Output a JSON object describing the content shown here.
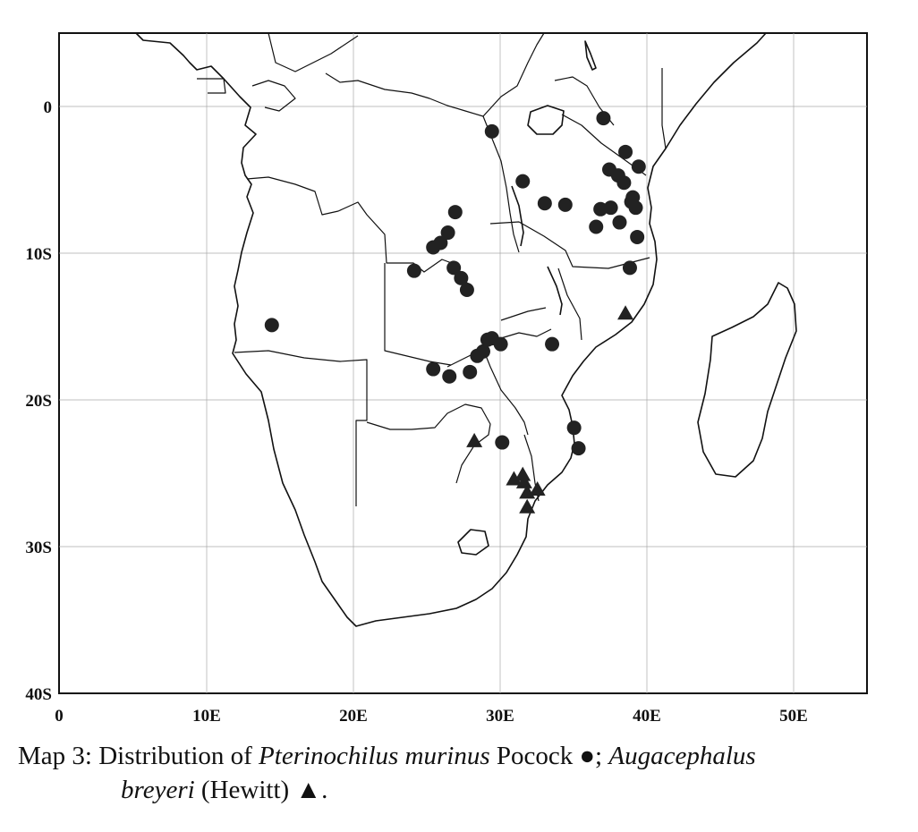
{
  "map": {
    "type": "scatter",
    "x_ticks": [
      "0",
      "10E",
      "20E",
      "30E",
      "40E",
      "50E"
    ],
    "y_ticks": [
      "0",
      "10S",
      "20S",
      "30S",
      "40S"
    ],
    "xlim": [
      0,
      55
    ],
    "ylim_lat": [
      5,
      -40
    ],
    "grid": true,
    "series": [
      {
        "name": "Pterinochilus murinus Pocock",
        "marker": "circle",
        "color": "#222222",
        "points": [
          [
            14.5,
            -14.9
          ],
          [
            24.2,
            -11.2
          ],
          [
            25.5,
            -9.6
          ],
          [
            26.0,
            -9.3
          ],
          [
            26.5,
            -8.6
          ],
          [
            27.0,
            -7.2
          ],
          [
            26.9,
            -11.0
          ],
          [
            27.4,
            -11.7
          ],
          [
            27.8,
            -12.5
          ],
          [
            29.5,
            -1.7
          ],
          [
            31.6,
            -5.1
          ],
          [
            33.1,
            -6.6
          ],
          [
            34.5,
            -6.7
          ],
          [
            36.6,
            -8.2
          ],
          [
            36.9,
            -7.0
          ],
          [
            37.6,
            -6.9
          ],
          [
            38.2,
            -7.9
          ],
          [
            37.1,
            -0.8
          ],
          [
            38.6,
            -3.1
          ],
          [
            37.5,
            -4.3
          ],
          [
            38.1,
            -4.7
          ],
          [
            38.5,
            -5.2
          ],
          [
            39.5,
            -4.1
          ],
          [
            39.0,
            -6.5
          ],
          [
            39.3,
            -6.9
          ],
          [
            39.1,
            -6.2
          ],
          [
            39.4,
            -8.9
          ],
          [
            38.9,
            -11.0
          ],
          [
            28.5,
            -17.0
          ],
          [
            28.9,
            -16.7
          ],
          [
            29.5,
            -15.8
          ],
          [
            30.1,
            -16.2
          ],
          [
            29.2,
            -15.9
          ],
          [
            25.5,
            -17.9
          ],
          [
            26.6,
            -18.4
          ],
          [
            28.0,
            -18.1
          ],
          [
            33.6,
            -16.2
          ],
          [
            30.2,
            -22.9
          ],
          [
            35.1,
            -21.9
          ],
          [
            35.4,
            -23.3
          ]
        ]
      },
      {
        "name": "Augacephalus breyeri (Hewitt)",
        "marker": "triangle",
        "color": "#222222",
        "points": [
          [
            38.6,
            -14.1
          ],
          [
            28.3,
            -22.8
          ],
          [
            31.0,
            -25.4
          ],
          [
            31.6,
            -25.1
          ],
          [
            31.9,
            -26.3
          ],
          [
            32.6,
            -26.1
          ],
          [
            31.7,
            -25.6
          ],
          [
            31.9,
            -27.3
          ]
        ]
      }
    ]
  },
  "caption": {
    "prefix": "Map 3:  Distribution of ",
    "species1": "Pterinochilus murinus",
    "author1": " Pocock ",
    "symbol1": "●",
    "sep": "; ",
    "species2_part1": "Augacephalus",
    "species2_part2": "breyeri",
    "author2": " (Hewitt) ",
    "symbol2": "▲",
    "end": "."
  }
}
